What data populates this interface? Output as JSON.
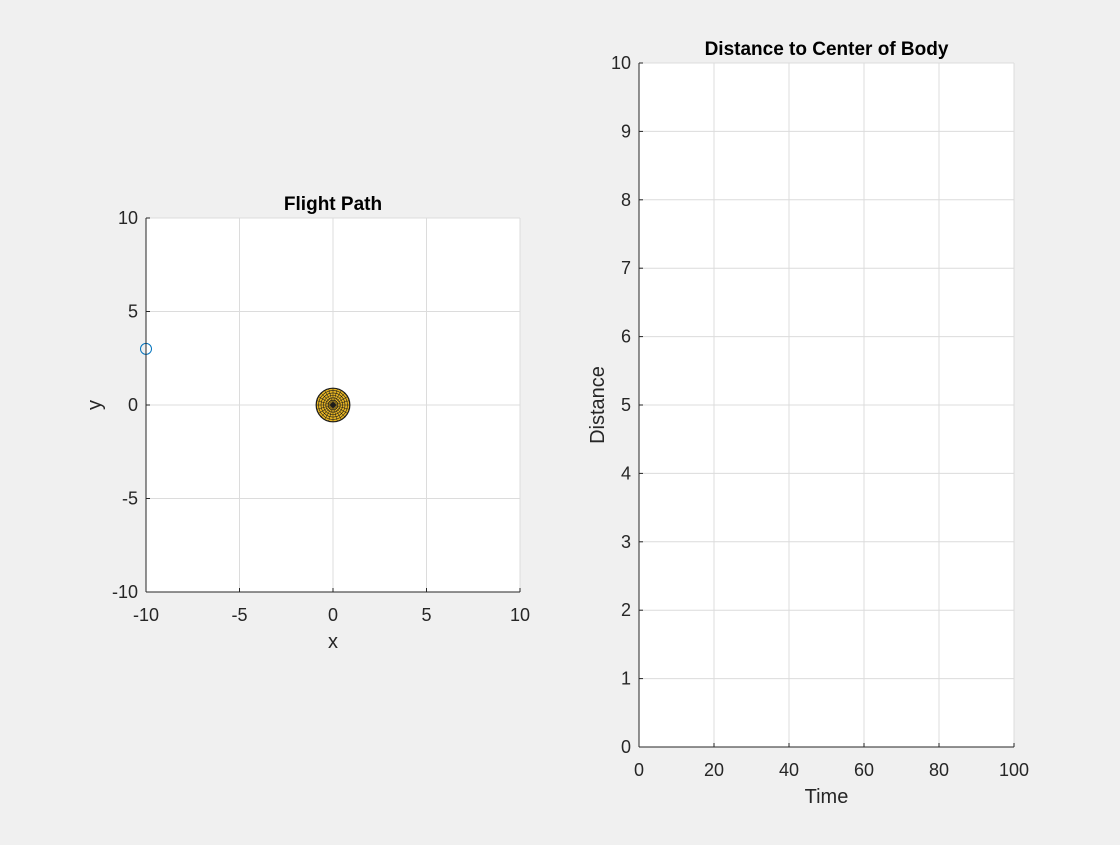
{
  "window": {
    "background": "#f0f0f0"
  },
  "colors": {
    "axes_background": "#ffffff",
    "axis_line": "#262626",
    "grid": "#dcdcdc",
    "marker": "#0072bd",
    "body_fill": "#e6b422",
    "body_mesh": "#1a1a1a"
  },
  "chart_data": [
    {
      "type": "scatter",
      "title": "Flight Path",
      "xlabel": "x",
      "ylabel": "y",
      "xlim": [
        -10,
        10
      ],
      "ylim": [
        -10,
        10
      ],
      "xticks": [
        -10,
        -5,
        0,
        5,
        10
      ],
      "yticks": [
        -10,
        -5,
        0,
        5,
        10
      ],
      "grid": true,
      "series": [
        {
          "marker": "open-circle",
          "color": "#0072bd",
          "x": [
            -10
          ],
          "y": [
            3
          ]
        }
      ],
      "body": {
        "shape": "meshed-sphere",
        "center": [
          0,
          0
        ],
        "radius": 0.9
      }
    },
    {
      "type": "line",
      "title": "Distance to Center of Body",
      "xlabel": "Time",
      "ylabel": "Distance",
      "xlim": [
        0,
        100
      ],
      "ylim": [
        0,
        10
      ],
      "xticks": [
        0,
        20,
        40,
        60,
        80,
        100
      ],
      "yticks": [
        0,
        1,
        2,
        3,
        4,
        5,
        6,
        7,
        8,
        9,
        10
      ],
      "grid": true,
      "series": []
    }
  ]
}
